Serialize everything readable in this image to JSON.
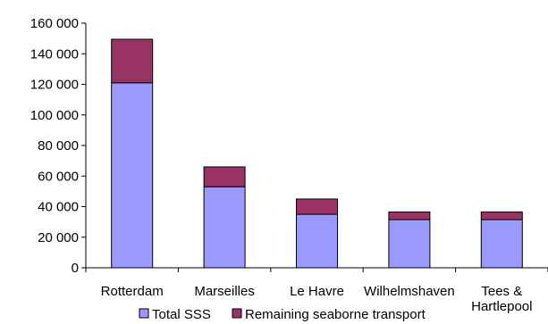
{
  "chart_data": {
    "type": "bar",
    "stacked": true,
    "categories": [
      "Rotterdam",
      "Marseilles",
      "Le Havre",
      "Wilhelmshaven",
      "Tees & Hartlepool"
    ],
    "series": [
      {
        "name": "Total SSS",
        "color": "#9999ff",
        "values": [
          121000,
          53000,
          35000,
          31500,
          31500
        ]
      },
      {
        "name": "Remaining seaborne transport",
        "color": "#993366",
        "values": [
          28500,
          13000,
          10000,
          5000,
          5000
        ]
      }
    ],
    "ylim": [
      0,
      160000
    ],
    "yticks": [
      "0",
      "20 000",
      "40 000",
      "60 000",
      "80 000",
      "100 000",
      "120 000",
      "140 000",
      "160 000"
    ],
    "ytick_values": [
      0,
      20000,
      40000,
      60000,
      80000,
      100000,
      120000,
      140000,
      160000
    ],
    "category_label_lines": [
      [
        "Rotterdam"
      ],
      [
        "Marseilles"
      ],
      [
        "Le Havre"
      ],
      [
        "Wilhelmshaven"
      ],
      [
        "Tees &",
        "Hartlepool"
      ]
    ],
    "title": "",
    "xlabel": "",
    "ylabel": "",
    "grid": false,
    "legend_position": "bottom"
  }
}
